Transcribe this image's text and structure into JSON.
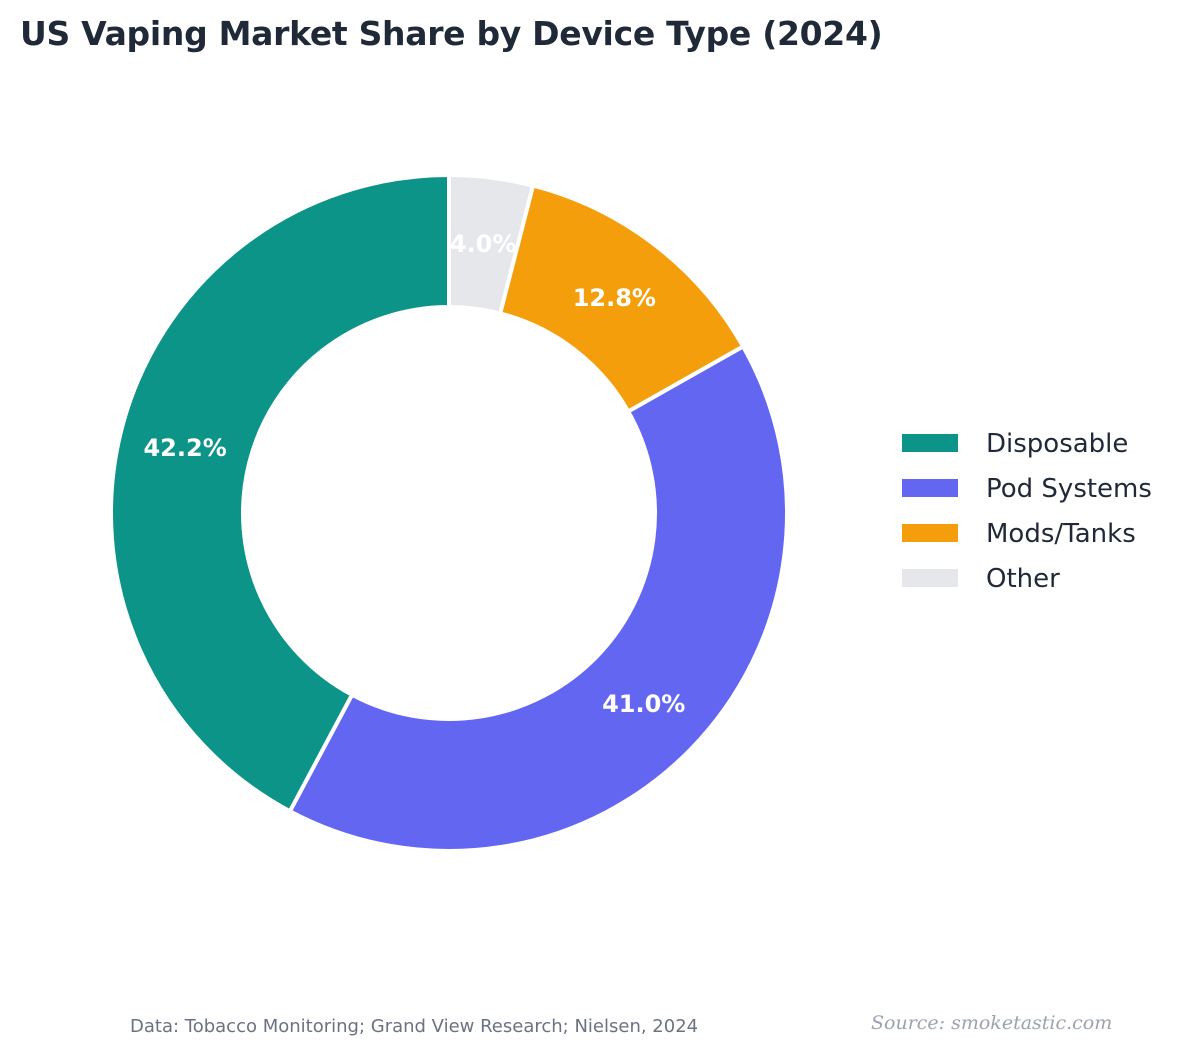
{
  "chart_data": {
    "type": "pie",
    "variant": "donut",
    "title": "US Vaping Market Share by Device Type (2024)",
    "categories": [
      "Other",
      "Mods/Tanks",
      "Pod Systems",
      "Disposable"
    ],
    "values": [
      4.0,
      12.8,
      41.0,
      42.2
    ],
    "value_labels": [
      "4.0%",
      "12.8%",
      "41.0%",
      "42.2%"
    ],
    "colors": [
      "#e5e7eb",
      "#f59e0b",
      "#6366f1",
      "#0d9488"
    ],
    "legend": {
      "placement": "right",
      "entries": [
        "Disposable",
        "Pod Systems",
        "Mods/Tanks",
        "Other"
      ],
      "colors": [
        "#0d9488",
        "#6366f1",
        "#f59e0b",
        "#e5e7eb"
      ]
    }
  },
  "footer": {
    "data_source": "Data: Tobacco Monitoring; Grand View Research; Nielsen, 2024",
    "attribution": "Source: smoketastic.com"
  }
}
